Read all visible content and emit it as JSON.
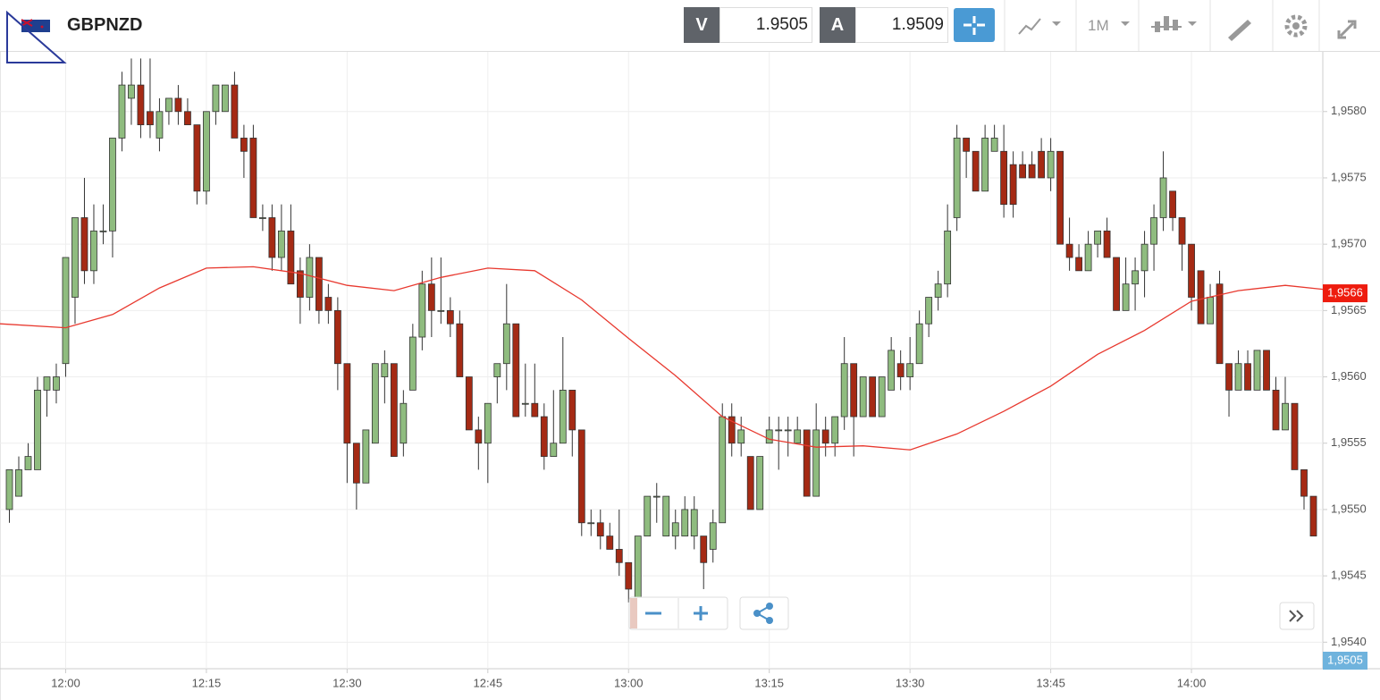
{
  "header": {
    "symbol": "GBPNZD",
    "bid_label": "V",
    "bid": "1.9505",
    "ask_label": "A",
    "ask": "1.9509",
    "timeframe": "1M"
  },
  "chart_data": {
    "type": "candlestick",
    "x": [
      "11:54",
      "11:55",
      "11:56",
      "11:57",
      "11:58",
      "11:59",
      "12:00",
      "12:01",
      "12:02",
      "12:03",
      "12:04",
      "12:05",
      "12:06",
      "12:07",
      "12:08",
      "12:09",
      "12:10",
      "12:11",
      "12:12",
      "12:13",
      "12:14",
      "12:15",
      "12:16",
      "12:17",
      "12:18",
      "12:19",
      "12:20",
      "12:21",
      "12:22",
      "12:23",
      "12:24",
      "12:25",
      "12:26",
      "12:27",
      "12:28",
      "12:29",
      "12:30",
      "12:31",
      "12:32",
      "12:33",
      "12:34",
      "12:35",
      "12:36",
      "12:37",
      "12:38",
      "12:39",
      "12:40",
      "12:41",
      "12:42",
      "12:43",
      "12:44",
      "12:45",
      "12:46",
      "12:47",
      "12:48",
      "12:49",
      "12:50",
      "12:51",
      "12:52",
      "12:53",
      "12:54",
      "12:55",
      "12:56",
      "12:57",
      "12:58",
      "12:59",
      "13:00",
      "13:01",
      "13:02",
      "13:03",
      "13:04",
      "13:05",
      "13:06",
      "13:07",
      "13:08",
      "13:09",
      "13:10",
      "13:11",
      "13:12",
      "13:13",
      "13:14",
      "13:15",
      "13:16",
      "13:17",
      "13:18",
      "13:19",
      "13:20",
      "13:21",
      "13:22",
      "13:23",
      "13:24",
      "13:25",
      "13:26",
      "13:27",
      "13:28",
      "13:29",
      "13:30",
      "13:31",
      "13:32",
      "13:33",
      "13:34",
      "13:35",
      "13:36",
      "13:37",
      "13:38",
      "13:39",
      "13:40",
      "13:41",
      "13:42",
      "13:43",
      "13:44",
      "13:45",
      "13:46",
      "13:47",
      "13:48",
      "13:49",
      "13:50",
      "13:51",
      "13:52",
      "13:53",
      "13:54",
      "13:55",
      "13:56",
      "13:57",
      "13:58",
      "13:59",
      "14:00",
      "14:01",
      "14:02",
      "14:03",
      "14:04",
      "14:05",
      "14:06",
      "14:07",
      "14:08",
      "14:09",
      "14:10",
      "14:11",
      "14:12",
      "14:13"
    ],
    "open": [
      1.955,
      1.9551,
      1.9553,
      1.9553,
      1.9559,
      1.9559,
      1.9561,
      1.9566,
      1.9572,
      1.9568,
      1.9571,
      1.9571,
      1.9578,
      1.9581,
      1.9582,
      1.958,
      1.9578,
      1.958,
      1.9581,
      1.958,
      1.9579,
      1.9574,
      1.958,
      1.958,
      1.9582,
      1.9578,
      1.9578,
      1.9572,
      1.9572,
      1.9569,
      1.9571,
      1.9568,
      1.9566,
      1.9569,
      1.9566,
      1.9565,
      1.9561,
      1.9555,
      1.9552,
      1.9555,
      1.956,
      1.9561,
      1.9555,
      1.9559,
      1.9563,
      1.9567,
      1.9565,
      1.9565,
      1.9564,
      1.956,
      1.9556,
      1.9555,
      1.956,
      1.9561,
      1.9564,
      1.9558,
      1.9558,
      1.9557,
      1.9554,
      1.9555,
      1.9559,
      1.9556,
      1.9549,
      1.9549,
      1.9548,
      1.9547,
      1.9546,
      1.9543,
      1.9548,
      1.9551,
      1.9548,
      1.9548,
      1.9548,
      1.9548,
      1.9548,
      1.9547,
      1.9549,
      1.9557,
      1.9555,
      1.9554,
      1.955,
      1.9555,
      1.9556,
      1.9556,
      1.9555,
      1.9556,
      1.9551,
      1.9556,
      1.9555,
      1.9557,
      1.9561,
      1.9557,
      1.956,
      1.9557,
      1.9559,
      1.9561,
      1.956,
      1.9561,
      1.9564,
      1.9566,
      1.9567,
      1.9572,
      1.9578,
      1.9577,
      1.9574,
      1.9577,
      1.9577,
      1.9576,
      1.9576,
      1.9576,
      1.9577,
      1.9575,
      1.9577,
      1.957,
      1.9569,
      1.9568,
      1.957,
      1.9571,
      1.9569,
      1.9565,
      1.9567,
      1.9568,
      1.957,
      1.9572,
      1.9574,
      1.9572,
      1.957,
      1.9568,
      1.9564,
      1.9567,
      1.9561,
      1.9559,
      1.9561,
      1.9559,
      1.9562,
      1.9559,
      1.9556,
      1.9558,
      1.9553,
      1.9551
    ],
    "high": [
      1.9553,
      1.9554,
      1.9555,
      1.956,
      1.956,
      1.9561,
      1.9569,
      1.9572,
      1.9575,
      1.9573,
      1.9573,
      1.9578,
      1.9583,
      1.9584,
      1.9584,
      1.9584,
      1.9581,
      1.9581,
      1.9582,
      1.9581,
      1.9579,
      1.958,
      1.9582,
      1.9582,
      1.9583,
      1.9579,
      1.9579,
      1.9573,
      1.9573,
      1.9573,
      1.9573,
      1.9569,
      1.957,
      1.9569,
      1.9567,
      1.9566,
      1.9561,
      1.9555,
      1.9556,
      1.9561,
      1.9562,
      1.9561,
      1.9559,
      1.9564,
      1.9568,
      1.9569,
      1.9569,
      1.9566,
      1.9565,
      1.956,
      1.9557,
      1.9558,
      1.9561,
      1.9567,
      1.9564,
      1.9561,
      1.9561,
      1.9558,
      1.9559,
      1.9563,
      1.9559,
      1.9556,
      1.955,
      1.955,
      1.9549,
      1.955,
      1.9546,
      1.9548,
      1.9551,
      1.9552,
      1.9551,
      1.955,
      1.9551,
      1.9551,
      1.9548,
      1.955,
      1.9558,
      1.9558,
      1.9557,
      1.9554,
      1.9554,
      1.9557,
      1.9557,
      1.9557,
      1.9557,
      1.9556,
      1.9558,
      1.9557,
      1.9557,
      1.9563,
      1.9561,
      1.956,
      1.956,
      1.956,
      1.9563,
      1.9562,
      1.9563,
      1.9565,
      1.9566,
      1.9568,
      1.9573,
      1.9579,
      1.9578,
      1.9577,
      1.9579,
      1.9579,
      1.9579,
      1.9577,
      1.9577,
      1.9577,
      1.9578,
      1.9578,
      1.9577,
      1.9572,
      1.957,
      1.9571,
      1.9571,
      1.9572,
      1.9569,
      1.9569,
      1.9569,
      1.9571,
      1.9573,
      1.9577,
      1.9574,
      1.9572,
      1.957,
      1.9568,
      1.9567,
      1.9568,
      1.9561,
      1.9562,
      1.9562,
      1.9562,
      1.9562,
      1.956,
      1.956,
      1.9558,
      1.9553,
      1.9551
    ],
    "low": [
      1.9549,
      1.9551,
      1.9553,
      1.9553,
      1.9557,
      1.9558,
      1.956,
      1.9564,
      1.9567,
      1.9567,
      1.957,
      1.9569,
      1.9577,
      1.9579,
      1.9578,
      1.9578,
      1.9577,
      1.9579,
      1.9579,
      1.9579,
      1.9573,
      1.9573,
      1.9579,
      1.958,
      1.9578,
      1.9575,
      1.9572,
      1.9571,
      1.9568,
      1.9568,
      1.9567,
      1.9564,
      1.9565,
      1.9564,
      1.9564,
      1.9559,
      1.9552,
      1.955,
      1.9552,
      1.9555,
      1.9558,
      1.9554,
      1.9554,
      1.9559,
      1.9562,
      1.9563,
      1.9564,
      1.9563,
      1.956,
      1.9556,
      1.9553,
      1.9552,
      1.9558,
      1.9559,
      1.9557,
      1.9557,
      1.9557,
      1.9553,
      1.9554,
      1.9555,
      1.9554,
      1.9548,
      1.9548,
      1.9547,
      1.9547,
      1.9545,
      1.9543,
      1.9543,
      1.9548,
      1.9549,
      1.9548,
      1.9547,
      1.9548,
      1.9547,
      1.9544,
      1.9546,
      1.9549,
      1.9554,
      1.9554,
      1.955,
      1.955,
      1.9555,
      1.9553,
      1.9554,
      1.9555,
      1.9551,
      1.9551,
      1.9554,
      1.9554,
      1.9556,
      1.9554,
      1.9557,
      1.9557,
      1.9557,
      1.9559,
      1.9559,
      1.9559,
      1.9561,
      1.9563,
      1.9565,
      1.9566,
      1.9571,
      1.9575,
      1.9574,
      1.9574,
      1.9577,
      1.9572,
      1.9572,
      1.9575,
      1.9575,
      1.9575,
      1.9574,
      1.957,
      1.9568,
      1.9568,
      1.9568,
      1.9569,
      1.9569,
      1.9565,
      1.9565,
      1.9565,
      1.9566,
      1.9568,
      1.9571,
      1.9571,
      1.9568,
      1.9565,
      1.9564,
      1.9564,
      1.9561,
      1.9557,
      1.9559,
      1.9559,
      1.9559,
      1.9559,
      1.9556,
      1.9556,
      1.9553,
      1.955,
      1.9548
    ],
    "close": [
      1.9553,
      1.9553,
      1.9554,
      1.9559,
      1.956,
      1.956,
      1.9569,
      1.9572,
      1.9568,
      1.9571,
      1.9571,
      1.9578,
      1.9582,
      1.9582,
      1.9579,
      1.9579,
      1.958,
      1.9581,
      1.958,
      1.9579,
      1.9574,
      1.958,
      1.9582,
      1.9582,
      1.9578,
      1.9577,
      1.9572,
      1.9572,
      1.9569,
      1.9571,
      1.9567,
      1.9566,
      1.9569,
      1.9565,
      1.9565,
      1.9561,
      1.9555,
      1.9552,
      1.9556,
      1.9561,
      1.9561,
      1.9554,
      1.9558,
      1.9563,
      1.9567,
      1.9565,
      1.9565,
      1.9564,
      1.956,
      1.9556,
      1.9555,
      1.9558,
      1.9561,
      1.9564,
      1.9557,
      1.9558,
      1.9557,
      1.9554,
      1.9555,
      1.9559,
      1.9556,
      1.9549,
      1.9549,
      1.9548,
      1.9547,
      1.9546,
      1.9544,
      1.9548,
      1.9551,
      1.9551,
      1.9551,
      1.9549,
      1.955,
      1.955,
      1.9546,
      1.9549,
      1.9557,
      1.9555,
      1.9556,
      1.955,
      1.9554,
      1.9556,
      1.9556,
      1.9556,
      1.9556,
      1.9551,
      1.9556,
      1.9555,
      1.9557,
      1.9561,
      1.9557,
      1.956,
      1.9557,
      1.956,
      1.9562,
      1.956,
      1.9561,
      1.9564,
      1.9566,
      1.9567,
      1.9571,
      1.9578,
      1.9577,
      1.9574,
      1.9578,
      1.9578,
      1.9573,
      1.9573,
      1.9575,
      1.9575,
      1.9575,
      1.9577,
      1.957,
      1.9569,
      1.9568,
      1.957,
      1.9571,
      1.9569,
      1.9565,
      1.9567,
      1.9568,
      1.957,
      1.9572,
      1.9575,
      1.9572,
      1.957,
      1.9566,
      1.9564,
      1.9566,
      1.9561,
      1.9559,
      1.9561,
      1.9559,
      1.9562,
      1.9559,
      1.9556,
      1.9558,
      1.9553,
      1.9551,
      1.9548
    ],
    "up_color": "#8fbc7f",
    "down_color": "#a52a14",
    "ma": {
      "color": "#e8392f",
      "x": [
        "11:53",
        "12:00",
        "12:05",
        "12:10",
        "12:15",
        "12:20",
        "12:25",
        "12:30",
        "12:35",
        "12:40",
        "12:45",
        "12:50",
        "12:55",
        "13:00",
        "13:05",
        "13:10",
        "13:15",
        "13:20",
        "13:25",
        "13:30",
        "13:35",
        "13:40",
        "13:45",
        "13:50",
        "13:55",
        "14:00",
        "14:05",
        "14:10",
        "14:14"
      ],
      "values": [
        1.9564,
        1.95637,
        1.95647,
        1.95667,
        1.95682,
        1.95683,
        1.95678,
        1.95669,
        1.95665,
        1.95675,
        1.95682,
        1.9568,
        1.95658,
        1.95629,
        1.95601,
        1.9557,
        1.95553,
        1.95547,
        1.95548,
        1.95545,
        1.95557,
        1.95574,
        1.95593,
        1.95617,
        1.95635,
        1.95657,
        1.95665,
        1.95669,
        1.95666
      ]
    },
    "last_tag": {
      "value": 1.95663,
      "label": "1,9566",
      "color": "#ee1c0e"
    },
    "bid_tag": "1,9505",
    "xlim": [
      "11:53",
      "14:14"
    ],
    "xticks": [
      "12:00",
      "12:15",
      "12:30",
      "12:45",
      "13:00",
      "13:15",
      "13:30",
      "13:45",
      "14:00"
    ],
    "ylim": [
      1.9538,
      1.95845
    ],
    "yticks": [
      {
        "value": 1.954,
        "label": "1,9540"
      },
      {
        "value": 1.9545,
        "label": "1,9545"
      },
      {
        "value": 1.955,
        "label": "1,9550"
      },
      {
        "value": 1.9555,
        "label": "1,9555"
      },
      {
        "value": 1.956,
        "label": "1,9560"
      },
      {
        "value": 1.9565,
        "label": "1,9565"
      },
      {
        "value": 1.957,
        "label": "1,9570"
      },
      {
        "value": 1.9575,
        "label": "1,9575"
      },
      {
        "value": 1.958,
        "label": "1,9580"
      }
    ],
    "grid": true
  }
}
